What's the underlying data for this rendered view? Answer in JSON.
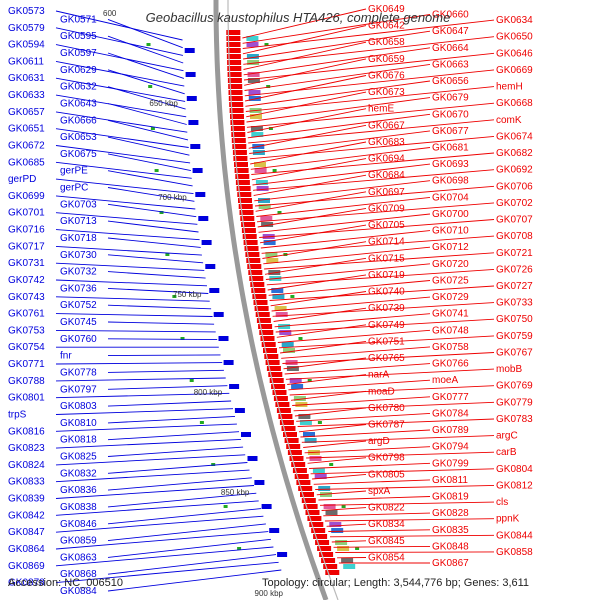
{
  "title": "Geobacillus kaustophilus HTA426, complete genome",
  "footer": {
    "accession": "Accession: NC_006510",
    "topology": "Topology: circular; Length: 3,544,776 bp; Genes: 3,611"
  },
  "colors": {
    "forward": "#0000dd",
    "reverse": "#ee0000",
    "backbone": "#999999",
    "marker": "#22aa22"
  },
  "scale_labels": [
    "650 kbp",
    "700 kbp",
    "750 kbp",
    "800 kbp",
    "850 kbp",
    "900 kbp"
  ],
  "scale_partial": "600",
  "left_genes": [
    "GK0573",
    "GK0571",
    "GK0579",
    "GK0595",
    "GK0594",
    "GK0597",
    "GK0611",
    "GK0629",
    "GK0631",
    "GK0632",
    "GK0633",
    "GK0643",
    "GK0657",
    "GK0666",
    "GK0651",
    "GK0653",
    "GK0672",
    "GK0675",
    "GK0685",
    "gerPE",
    "gerPD",
    "gerPC",
    "GK0699",
    "GK0703",
    "GK0701",
    "GK0713",
    "GK0716",
    "GK0718",
    "GK0717",
    "GK0730",
    "GK0731",
    "GK0732",
    "GK0742",
    "GK0736",
    "GK0743",
    "GK0752",
    "GK0761",
    "GK0745",
    "GK0753",
    "GK0760",
    "GK0754",
    "fnr",
    "GK0771",
    "GK0778",
    "GK0788",
    "GK0797",
    "GK0801",
    "GK0803",
    "trpS",
    "GK0810",
    "GK0816",
    "GK0818",
    "GK0823",
    "GK0825",
    "GK0824",
    "GK0832",
    "GK0833",
    "GK0836",
    "GK0839",
    "GK0838",
    "GK0842",
    "GK0846",
    "GK0847",
    "GK0859",
    "GK0864",
    "GK0863",
    "GK0869",
    "GK0868",
    "GK0878",
    "GK0884"
  ],
  "right_genes": [
    "GK0649",
    "GK0660",
    "GK0634",
    "GK0642",
    "GK0647",
    "GK0650",
    "GK0658",
    "GK0664",
    "GK0646",
    "GK0659",
    "GK0663",
    "GK0669",
    "GK0676",
    "GK0656",
    "hemH",
    "GK0673",
    "GK0679",
    "GK0668",
    "hemE",
    "GK0670",
    "comK",
    "GK0667",
    "GK0677",
    "GK0674",
    "GK0683",
    "GK0681",
    "GK0682",
    "GK0694",
    "GK0693",
    "GK0692",
    "GK0684",
    "GK0698",
    "GK0706",
    "GK0697",
    "GK0704",
    "GK0702",
    "GK0709",
    "GK0700",
    "GK0707",
    "GK0705",
    "GK0710",
    "GK0708",
    "GK0714",
    "GK0712",
    "GK0721",
    "GK0715",
    "GK0720",
    "GK0726",
    "GK0719",
    "GK0725",
    "GK0727",
    "GK0740",
    "GK0729",
    "GK0733",
    "GK0739",
    "GK0741",
    "GK0750",
    "GK0749",
    "GK0748",
    "GK0759",
    "GK0751",
    "GK0758",
    "GK0767",
    "GK0765",
    "GK0766",
    "mobB",
    "narA",
    "moeA",
    "GK0769",
    "moaD",
    "GK0777",
    "GK0779",
    "GK0780",
    "GK0784",
    "GK0783",
    "GK0787",
    "GK0789",
    "argC",
    "argD",
    "GK0794",
    "carB",
    "GK0798",
    "GK0799",
    "GK0804",
    "GK0805",
    "GK0811",
    "GK0812",
    "spxA",
    "GK0819",
    "cls",
    "GK0822",
    "GK0828",
    "ppnK",
    "GK0834",
    "GK0835",
    "GK0844",
    "GK0845",
    "GK0848",
    "GK0858",
    "GK0854",
    "GK0867"
  ]
}
